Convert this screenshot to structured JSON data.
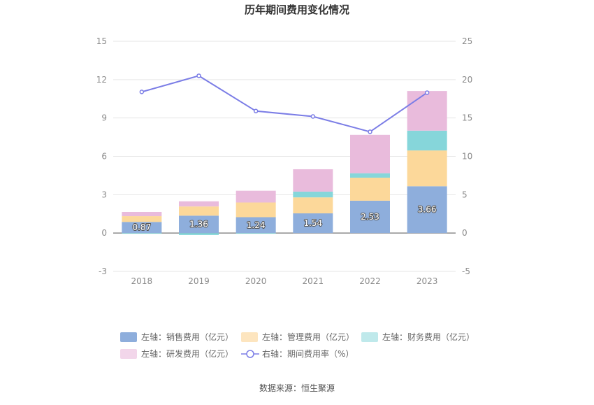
{
  "chart_data": {
    "type": "bar",
    "title": "历年期间费用变化情况",
    "categories": [
      "2018",
      "2019",
      "2020",
      "2021",
      "2022",
      "2023"
    ],
    "left_axis": {
      "ylim": [
        -3,
        15
      ],
      "ticks": [
        "15",
        "12",
        "9",
        "6",
        "3",
        "0",
        "-3"
      ]
    },
    "right_axis": {
      "ylim": [
        -5,
        25
      ],
      "ticks": [
        "25",
        "20",
        "15",
        "10",
        "5",
        "0",
        "-5"
      ]
    },
    "grid": true,
    "legend_position": "bottom",
    "series": [
      {
        "name": "左轴：销售费用（亿元）",
        "type": "bar",
        "axis": "left",
        "color": "#8eaedc",
        "values": [
          0.87,
          1.36,
          1.24,
          1.54,
          2.53,
          3.66
        ],
        "labels": [
          "0.87",
          "1.36",
          "1.24",
          "1.54",
          "2.53",
          "3.66"
        ]
      },
      {
        "name": "左轴：管理费用（亿元）",
        "type": "bar",
        "axis": "left",
        "color": "#fcd89a",
        "values": [
          0.45,
          0.72,
          1.15,
          1.25,
          1.8,
          2.8
        ]
      },
      {
        "name": "左轴：财务费用（亿元）",
        "type": "bar",
        "axis": "left",
        "color": "#86d6da",
        "values": [
          -0.05,
          -0.15,
          -0.05,
          0.45,
          0.35,
          1.55
        ]
      },
      {
        "name": "左轴：研发费用（亿元）",
        "type": "bar",
        "axis": "left",
        "color": "#e9bbdc",
        "values": [
          0.33,
          0.4,
          0.92,
          1.75,
          3.0,
          3.1
        ]
      },
      {
        "name": "右轴：期间费用率（%）",
        "type": "line",
        "axis": "right",
        "color": "#7b7de6",
        "values": [
          18.4,
          20.5,
          15.9,
          15.2,
          13.2,
          18.3
        ]
      }
    ]
  },
  "source_text": "数据来源：恒生聚源"
}
